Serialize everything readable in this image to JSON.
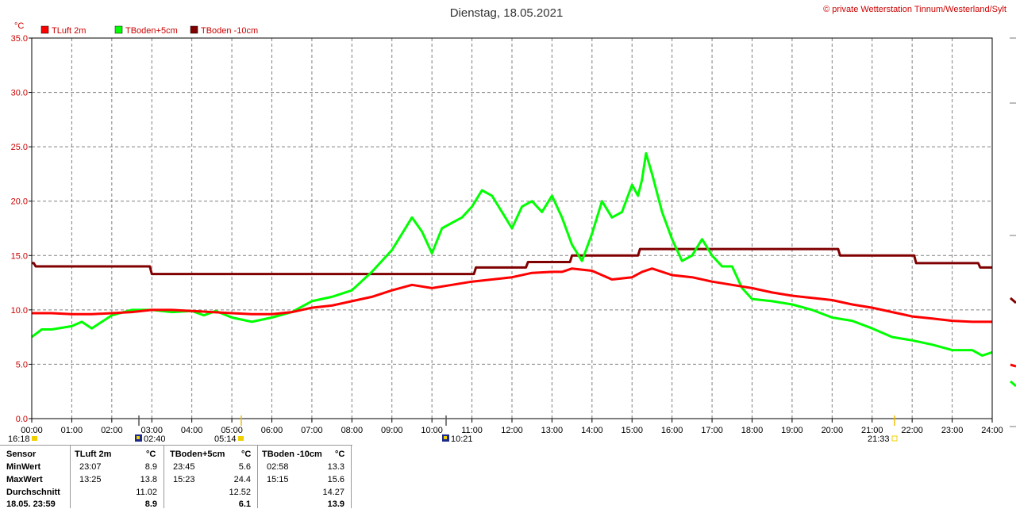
{
  "chart_data": {
    "type": "line",
    "title": "Dienstag, 18.05.2021",
    "copyright": "© private Wetterstation Tinnum/Westerland/Sylt",
    "ylabel": "°C",
    "ylim": [
      0,
      35
    ],
    "yticks": [
      "0.0",
      "5.0",
      "10.0",
      "15.0",
      "20.0",
      "25.0",
      "30.0",
      "35.0"
    ],
    "xticks": [
      "00:00",
      "01:00",
      "02:00",
      "03:00",
      "04:00",
      "05:00",
      "06:00",
      "07:00",
      "08:00",
      "09:00",
      "10:00",
      "11:00",
      "12:00",
      "13:00",
      "14:00",
      "15:00",
      "16:00",
      "17:00",
      "18:00",
      "19:00",
      "20:00",
      "21:00",
      "22:00",
      "23:00",
      "24:00"
    ],
    "xlim": [
      0,
      24
    ],
    "grid": true,
    "legend_position": "top-left",
    "series": [
      {
        "name": "TLuft 2m",
        "color": "#ff0000",
        "x": [
          0,
          0.5,
          1,
          1.5,
          2,
          2.5,
          3,
          3.5,
          4,
          4.5,
          5,
          5.5,
          6,
          6.5,
          7,
          7.5,
          8,
          8.5,
          9,
          9.5,
          10,
          10.5,
          11,
          11.5,
          12,
          12.5,
          13,
          13.25,
          13.5,
          14,
          14.5,
          15,
          15.25,
          15.5,
          16,
          16.5,
          17,
          17.5,
          18,
          18.5,
          19,
          19.5,
          20,
          20.5,
          21,
          21.5,
          22,
          22.5,
          23,
          23.5,
          24
        ],
        "y": [
          9.7,
          9.7,
          9.6,
          9.6,
          9.7,
          9.8,
          10.0,
          10.0,
          9.9,
          9.8,
          9.7,
          9.6,
          9.6,
          9.8,
          10.2,
          10.4,
          10.8,
          11.2,
          11.8,
          12.3,
          12.0,
          12.3,
          12.6,
          12.8,
          13.0,
          13.4,
          13.5,
          13.5,
          13.8,
          13.6,
          12.8,
          13.0,
          13.5,
          13.8,
          13.2,
          13.0,
          12.6,
          12.3,
          12.0,
          11.6,
          11.3,
          11.1,
          10.9,
          10.5,
          10.2,
          9.8,
          9.4,
          9.2,
          9.0,
          8.9,
          8.9
        ]
      },
      {
        "name": "TBoden+5cm",
        "color": "#00ff00",
        "x": [
          0,
          0.25,
          0.5,
          1,
          1.25,
          1.5,
          2,
          2.5,
          3,
          3.5,
          4,
          4.3,
          4.6,
          5,
          5.5,
          6,
          6.5,
          7,
          7.5,
          8,
          8.5,
          9,
          9.25,
          9.5,
          9.75,
          10,
          10.25,
          10.5,
          10.75,
          11,
          11.25,
          11.5,
          11.75,
          12,
          12.25,
          12.5,
          12.75,
          13,
          13.25,
          13.5,
          13.75,
          14,
          14.25,
          14.5,
          14.75,
          15,
          15.15,
          15.25,
          15.35,
          15.5,
          15.75,
          16,
          16.25,
          16.5,
          16.75,
          17,
          17.25,
          17.5,
          17.75,
          18,
          18.5,
          19,
          19.5,
          20,
          20.5,
          21,
          21.5,
          22,
          22.5,
          23,
          23.5,
          23.75,
          24
        ],
        "y": [
          7.5,
          8.2,
          8.2,
          8.5,
          8.9,
          8.3,
          9.5,
          10.0,
          10.0,
          9.8,
          9.9,
          9.5,
          9.9,
          9.3,
          8.9,
          9.3,
          9.8,
          10.8,
          11.2,
          11.8,
          13.5,
          15.5,
          17.0,
          18.5,
          17.2,
          15.2,
          17.5,
          18.0,
          18.5,
          19.5,
          21.0,
          20.5,
          19.0,
          17.5,
          19.5,
          20.0,
          19.0,
          20.5,
          18.5,
          16.0,
          14.5,
          17.0,
          20.0,
          18.5,
          19.0,
          21.5,
          20.5,
          22.0,
          24.4,
          22.5,
          19.0,
          16.5,
          14.5,
          15.0,
          16.5,
          15.0,
          14.0,
          14.0,
          12.0,
          11.0,
          10.8,
          10.5,
          10.0,
          9.3,
          9.0,
          8.3,
          7.5,
          7.2,
          6.8,
          6.3,
          6.3,
          5.8,
          6.1
        ]
      },
      {
        "name": "TBoden -10cm",
        "color": "#800000",
        "x": [
          0,
          0.05,
          0.1,
          2.95,
          3.0,
          11.05,
          11.1,
          12.35,
          12.4,
          13.45,
          13.5,
          15.15,
          15.2,
          20.15,
          20.2,
          22.05,
          22.1,
          23.65,
          23.7,
          24
        ],
        "y": [
          14.3,
          14.3,
          14.0,
          14.0,
          13.3,
          13.3,
          13.9,
          13.9,
          14.4,
          14.4,
          15.0,
          15.0,
          15.6,
          15.6,
          15.0,
          15.0,
          14.3,
          14.3,
          13.9,
          13.9
        ]
      }
    ]
  },
  "markers": {
    "left_time": "16:18",
    "t1": "02:40",
    "t2": "05:14",
    "t3": "10:21",
    "t4": "21:33"
  },
  "stats": {
    "headers": {
      "sensor": "Sensor",
      "s1": "TLuft 2m",
      "s2": "TBoden+5cm",
      "s3": "TBoden -10cm",
      "unit": "°C"
    },
    "rows": [
      {
        "label": "MinWert",
        "s1_time": "23:07",
        "s1_val": "8.9",
        "s2_time": "23:45",
        "s2_val": "5.6",
        "s3_time": "02:58",
        "s3_val": "13.3"
      },
      {
        "label": "MaxWert",
        "s1_time": "13:25",
        "s1_val": "13.8",
        "s2_time": "15:23",
        "s2_val": "24.4",
        "s3_time": "15:15",
        "s3_val": "15.6"
      },
      {
        "label": "Durchschnitt",
        "s1_time": "",
        "s1_val": "11.02",
        "s2_time": "",
        "s2_val": "12.52",
        "s3_time": "",
        "s3_val": "14.27"
      },
      {
        "label": "18.05. 23:59",
        "s1_time": "",
        "s1_val": "8.9",
        "s2_time": "",
        "s2_val": "6.1",
        "s3_time": "",
        "s3_val": "13.9"
      }
    ]
  }
}
